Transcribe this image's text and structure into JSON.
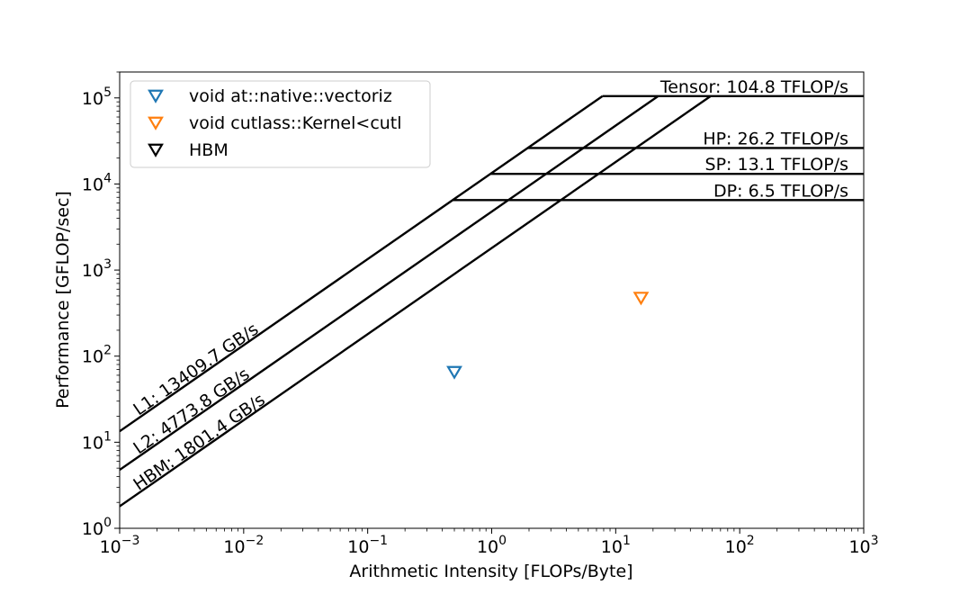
{
  "chart_data": {
    "type": "line",
    "xlabel": "Arithmetic Intensity [FLOPs/Byte]",
    "ylabel": "Performance [GFLOP/sec]",
    "xscale": "log",
    "yscale": "log",
    "xlim": [
      0.001,
      1000
    ],
    "ylim": [
      1,
      200000
    ],
    "grid": false,
    "legend_position": "top-left",
    "x_ticks": [
      {
        "base": "10",
        "exp": "−3",
        "value": 0.001
      },
      {
        "base": "10",
        "exp": "−2",
        "value": 0.01
      },
      {
        "base": "10",
        "exp": "−1",
        "value": 0.1
      },
      {
        "base": "10",
        "exp": "0",
        "value": 1
      },
      {
        "base": "10",
        "exp": "1",
        "value": 10
      },
      {
        "base": "10",
        "exp": "2",
        "value": 100
      },
      {
        "base": "10",
        "exp": "3",
        "value": 1000
      }
    ],
    "y_ticks": [
      {
        "base": "10",
        "exp": "0",
        "value": 1
      },
      {
        "base": "10",
        "exp": "1",
        "value": 10
      },
      {
        "base": "10",
        "exp": "2",
        "value": 100
      },
      {
        "base": "10",
        "exp": "3",
        "value": 1000
      },
      {
        "base": "10",
        "exp": "4",
        "value": 10000
      },
      {
        "base": "10",
        "exp": "5",
        "value": 100000
      }
    ],
    "memory_roofs": [
      {
        "label": "L1: 13409.7 GB/s",
        "bandwidth": 13409.7
      },
      {
        "label": "L2: 4773.8 GB/s",
        "bandwidth": 4773.8
      },
      {
        "label": "HBM: 1801.4 GB/s",
        "bandwidth": 1801.4
      }
    ],
    "compute_roofs": [
      {
        "label": "Tensor: 104.8 TFLOP/s",
        "gflops": 104800
      },
      {
        "label": "HP: 26.2 TFLOP/s",
        "gflops": 26200
      },
      {
        "label": "SP: 13.1 TFLOP/s",
        "gflops": 13100
      },
      {
        "label": "DP: 6.5 TFLOP/s",
        "gflops": 6500
      }
    ],
    "series": [
      {
        "name": "void at::native::vectoriz",
        "marker": "triangle-down",
        "color": "#1f77b4",
        "points": [
          {
            "x": 0.5,
            "y": 66
          }
        ]
      },
      {
        "name": "void cutlass::Kernel<cutl",
        "marker": "triangle-down",
        "color": "#ff7f0e",
        "points": [
          {
            "x": 16,
            "y": 480
          }
        ]
      },
      {
        "name": "HBM",
        "marker": "triangle-down",
        "color": "#000000",
        "points": []
      }
    ],
    "line_color": "#000000"
  }
}
